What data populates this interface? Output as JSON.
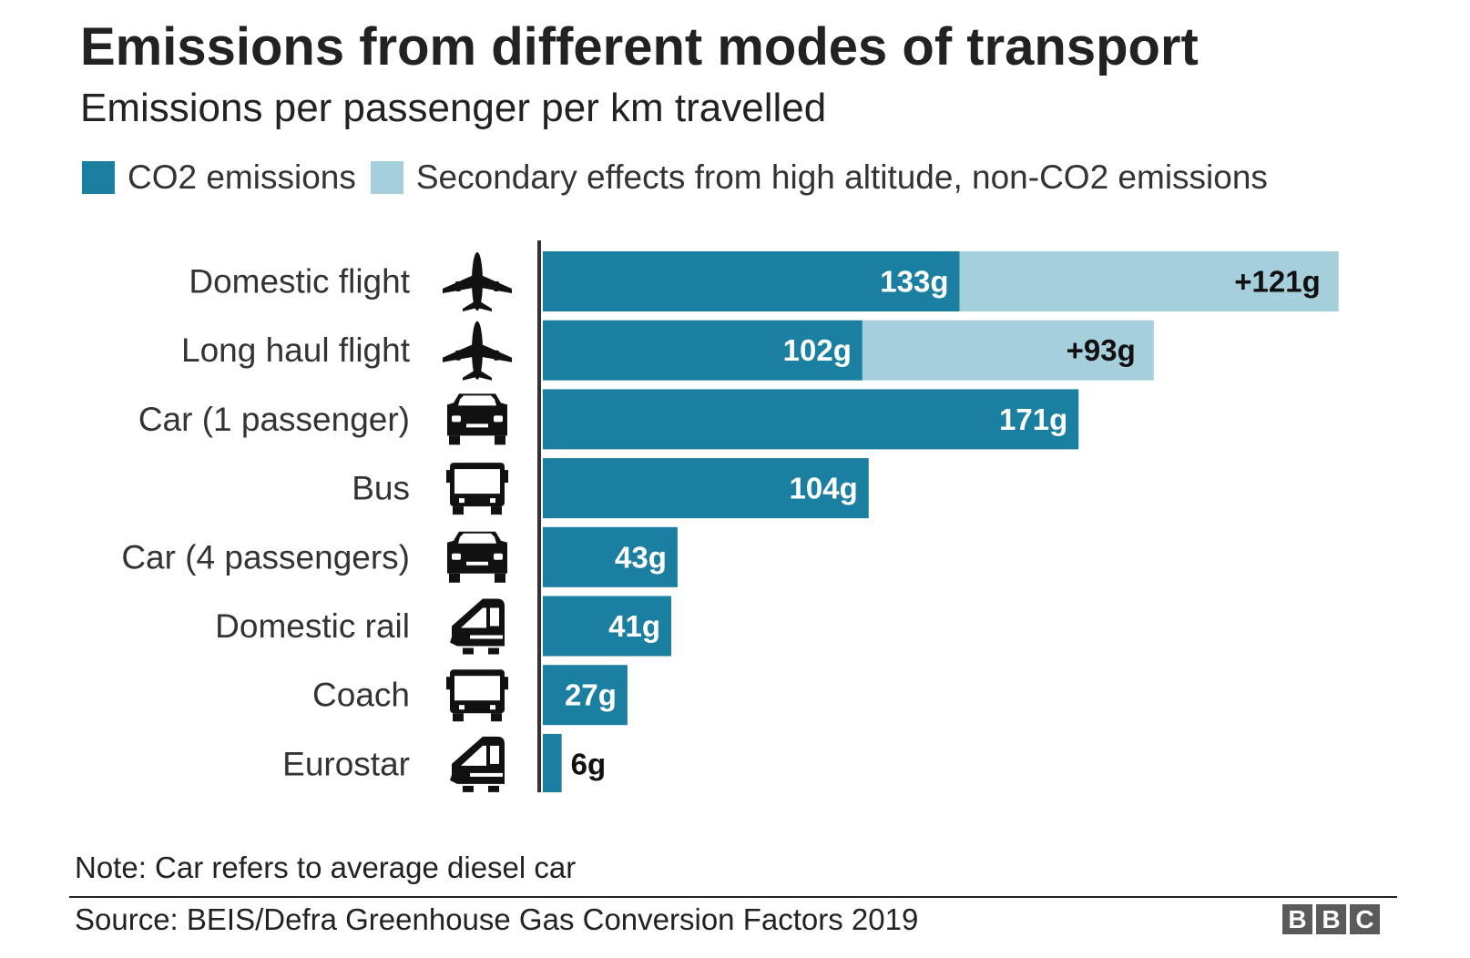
{
  "title": "Emissions from different modes of transport",
  "subtitle": "Emissions per passenger per km travelled",
  "legend": {
    "primary": "CO2 emissions",
    "secondary": "Secondary effects from high altitude, non-CO2 emissions"
  },
  "colors": {
    "primary": "#1a7fa0",
    "secondary": "#a6cfdc",
    "axis": "#333333"
  },
  "chart_data": {
    "type": "bar",
    "orientation": "horizontal",
    "stacked": true,
    "categories": [
      "Domestic flight",
      "Long haul flight",
      "Car (1 passenger)",
      "Bus",
      "Car (4 passengers)",
      "Domestic rail",
      "Coach",
      "Eurostar"
    ],
    "icons": [
      "plane-icon",
      "plane-icon",
      "car-icon",
      "bus-icon",
      "car-icon",
      "train-icon",
      "bus-icon",
      "train-icon"
    ],
    "series": [
      {
        "name": "CO2 emissions",
        "values": [
          133,
          102,
          171,
          104,
          43,
          41,
          27,
          6
        ],
        "labels": [
          "133g",
          "102g",
          "171g",
          "104g",
          "43g",
          "41g",
          "27g",
          "6g"
        ]
      },
      {
        "name": "Secondary effects from high altitude, non-CO2 emissions",
        "values": [
          121,
          93,
          0,
          0,
          0,
          0,
          0,
          0
        ],
        "labels": [
          "+121g",
          "+93g",
          "",
          "",
          "",
          "",
          "",
          ""
        ]
      }
    ],
    "xlim": [
      0,
      254
    ],
    "grid": false,
    "legend_position": "top"
  },
  "footer": {
    "note": "Note: Car refers to average diesel car",
    "source": "Source: BEIS/Defra Greenhouse Gas Conversion Factors 2019",
    "logo": [
      "B",
      "B",
      "C"
    ]
  }
}
